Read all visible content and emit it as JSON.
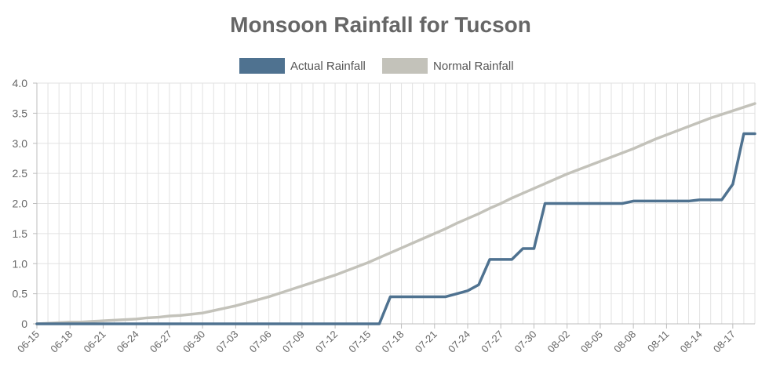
{
  "chart_data": {
    "type": "line",
    "title": "Monsoon Rainfall for Tucson",
    "xlabel": "",
    "ylabel": "",
    "ylim": [
      0,
      4.0
    ],
    "yticks": [
      "0",
      "0.5",
      "1.0",
      "1.5",
      "2.0",
      "2.5",
      "3.0",
      "3.5",
      "4.0"
    ],
    "x_tick_labels": [
      "06-15",
      "06-18",
      "06-21",
      "06-24",
      "06-27",
      "06-30",
      "07-03",
      "07-06",
      "07-09",
      "07-12",
      "07-15",
      "07-18",
      "07-21",
      "07-24",
      "07-27",
      "07-30",
      "08-02",
      "08-05",
      "08-08",
      "08-11",
      "08-14",
      "08-17"
    ],
    "x": [
      "06-15",
      "06-16",
      "06-17",
      "06-18",
      "06-19",
      "06-20",
      "06-21",
      "06-22",
      "06-23",
      "06-24",
      "06-25",
      "06-26",
      "06-27",
      "06-28",
      "06-29",
      "06-30",
      "07-01",
      "07-02",
      "07-03",
      "07-04",
      "07-05",
      "07-06",
      "07-07",
      "07-08",
      "07-09",
      "07-10",
      "07-11",
      "07-12",
      "07-13",
      "07-14",
      "07-15",
      "07-16",
      "07-17",
      "07-18",
      "07-19",
      "07-20",
      "07-21",
      "07-22",
      "07-23",
      "07-24",
      "07-25",
      "07-26",
      "07-27",
      "07-28",
      "07-29",
      "07-30",
      "07-31",
      "08-01",
      "08-02",
      "08-03",
      "08-04",
      "08-05",
      "08-06",
      "08-07",
      "08-08",
      "08-09",
      "08-10",
      "08-11",
      "08-12",
      "08-13",
      "08-14",
      "08-15",
      "08-16",
      "08-17",
      "08-18",
      "08-19"
    ],
    "grid": true,
    "legend_position": "top-center",
    "series": [
      {
        "name": "Actual Rainfall",
        "color": "#4f7290",
        "values": [
          0,
          0,
          0,
          0,
          0,
          0,
          0,
          0,
          0,
          0,
          0,
          0,
          0,
          0,
          0,
          0,
          0,
          0,
          0,
          0,
          0,
          0,
          0,
          0,
          0,
          0,
          0,
          0,
          0,
          0,
          0,
          0,
          0.45,
          0.45,
          0.45,
          0.45,
          0.45,
          0.45,
          0.5,
          0.55,
          0.65,
          1.07,
          1.07,
          1.07,
          1.25,
          1.25,
          2.0,
          2.0,
          2.0,
          2.0,
          2.0,
          2.0,
          2.0,
          2.0,
          2.04,
          2.04,
          2.04,
          2.04,
          2.04,
          2.04,
          2.06,
          2.06,
          2.06,
          2.32,
          3.16,
          3.16
        ]
      },
      {
        "name": "Normal Rainfall",
        "color": "#c3c2ba",
        "values": [
          0,
          0.01,
          0.02,
          0.03,
          0.03,
          0.04,
          0.05,
          0.06,
          0.07,
          0.08,
          0.1,
          0.11,
          0.13,
          0.14,
          0.16,
          0.18,
          0.22,
          0.26,
          0.3,
          0.35,
          0.4,
          0.45,
          0.51,
          0.57,
          0.63,
          0.69,
          0.75,
          0.81,
          0.88,
          0.95,
          1.02,
          1.1,
          1.18,
          1.26,
          1.34,
          1.42,
          1.5,
          1.58,
          1.67,
          1.75,
          1.83,
          1.92,
          2.0,
          2.09,
          2.17,
          2.25,
          2.33,
          2.41,
          2.49,
          2.56,
          2.63,
          2.7,
          2.77,
          2.84,
          2.91,
          2.99,
          3.07,
          3.14,
          3.21,
          3.28,
          3.35,
          3.42,
          3.48,
          3.54,
          3.6,
          3.66
        ]
      }
    ]
  }
}
